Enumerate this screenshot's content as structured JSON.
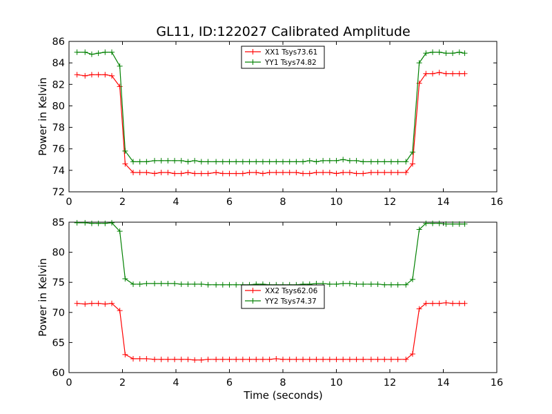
{
  "title": "GL11, ID:122027 Calibrated Amplitude",
  "xlabel": "Time (seconds)",
  "chart_data": [
    {
      "type": "line",
      "title": "GL11, ID:122027 Calibrated Amplitude",
      "xlabel": "",
      "ylabel": "Power in Kelvin",
      "xlim": [
        0,
        16
      ],
      "ylim": [
        72,
        86
      ],
      "xticks": [
        0,
        2,
        4,
        6,
        8,
        10,
        12,
        14,
        16
      ],
      "yticks": [
        72,
        74,
        76,
        78,
        80,
        82,
        84,
        86
      ],
      "grid": false,
      "legend_position": "top-center",
      "x": [
        0.3,
        0.6,
        0.85,
        1.1,
        1.35,
        1.6,
        1.9,
        2.1,
        2.4,
        2.65,
        2.9,
        3.2,
        3.45,
        3.7,
        3.95,
        4.2,
        4.45,
        4.7,
        4.95,
        5.2,
        5.5,
        5.75,
        6.0,
        6.25,
        6.5,
        6.75,
        7.0,
        7.25,
        7.5,
        7.75,
        8.0,
        8.25,
        8.5,
        8.75,
        9.0,
        9.25,
        9.5,
        9.75,
        10.0,
        10.25,
        10.5,
        10.75,
        11.0,
        11.3,
        11.55,
        11.8,
        12.05,
        12.3,
        12.6,
        12.85,
        13.1,
        13.35,
        13.6,
        13.85,
        14.1,
        14.35,
        14.6,
        14.8
      ],
      "series": [
        {
          "name": "XX1 Tsys73.61",
          "color": "#ff0000",
          "values": [
            82.9,
            82.8,
            82.9,
            82.9,
            82.9,
            82.8,
            81.8,
            74.6,
            73.8,
            73.8,
            73.8,
            73.7,
            73.8,
            73.8,
            73.7,
            73.7,
            73.8,
            73.7,
            73.7,
            73.7,
            73.8,
            73.7,
            73.7,
            73.7,
            73.7,
            73.8,
            73.8,
            73.7,
            73.8,
            73.8,
            73.8,
            73.8,
            73.8,
            73.7,
            73.7,
            73.8,
            73.8,
            73.8,
            73.7,
            73.8,
            73.8,
            73.7,
            73.7,
            73.8,
            73.8,
            73.8,
            73.8,
            73.8,
            73.8,
            74.6,
            82.1,
            83.0,
            83.0,
            83.1,
            83.0,
            83.0,
            83.0,
            83.0
          ]
        },
        {
          "name": "YY1 Tsys74.82",
          "color": "#008000",
          "values": [
            85.0,
            85.0,
            84.8,
            84.9,
            85.0,
            85.0,
            83.7,
            75.8,
            74.8,
            74.8,
            74.8,
            74.9,
            74.9,
            74.9,
            74.9,
            74.9,
            74.8,
            74.9,
            74.8,
            74.8,
            74.8,
            74.8,
            74.8,
            74.8,
            74.8,
            74.8,
            74.8,
            74.8,
            74.8,
            74.8,
            74.8,
            74.8,
            74.8,
            74.8,
            74.9,
            74.8,
            74.9,
            74.9,
            74.9,
            75.0,
            74.9,
            74.9,
            74.8,
            74.8,
            74.8,
            74.8,
            74.8,
            74.8,
            74.8,
            75.7,
            84.0,
            84.9,
            85.0,
            85.0,
            84.9,
            84.9,
            85.0,
            84.9
          ]
        }
      ]
    },
    {
      "type": "line",
      "title": "",
      "xlabel": "Time (seconds)",
      "ylabel": "Power in Kelvin",
      "xlim": [
        0,
        16
      ],
      "ylim": [
        60,
        85
      ],
      "xticks": [
        0,
        2,
        4,
        6,
        8,
        10,
        12,
        14,
        16
      ],
      "yticks": [
        60,
        65,
        70,
        75,
        80,
        85
      ],
      "grid": false,
      "legend_position": "center",
      "x": [
        0.3,
        0.6,
        0.85,
        1.1,
        1.35,
        1.6,
        1.9,
        2.1,
        2.4,
        2.65,
        2.9,
        3.2,
        3.45,
        3.7,
        3.95,
        4.2,
        4.45,
        4.7,
        4.95,
        5.2,
        5.5,
        5.75,
        6.0,
        6.25,
        6.5,
        6.75,
        7.0,
        7.25,
        7.5,
        7.75,
        8.0,
        8.25,
        8.5,
        8.75,
        9.0,
        9.25,
        9.5,
        9.75,
        10.0,
        10.25,
        10.5,
        10.75,
        11.0,
        11.3,
        11.55,
        11.8,
        12.05,
        12.3,
        12.6,
        12.85,
        13.1,
        13.35,
        13.6,
        13.85,
        14.1,
        14.35,
        14.6,
        14.8
      ],
      "series": [
        {
          "name": "XX2 Tsys62.06",
          "color": "#ff0000",
          "values": [
            71.5,
            71.4,
            71.5,
            71.5,
            71.4,
            71.5,
            70.3,
            63.0,
            62.3,
            62.3,
            62.3,
            62.2,
            62.2,
            62.2,
            62.2,
            62.2,
            62.2,
            62.1,
            62.1,
            62.2,
            62.2,
            62.2,
            62.2,
            62.2,
            62.2,
            62.2,
            62.2,
            62.2,
            62.2,
            62.3,
            62.2,
            62.2,
            62.2,
            62.2,
            62.2,
            62.2,
            62.2,
            62.2,
            62.2,
            62.2,
            62.2,
            62.2,
            62.2,
            62.2,
            62.2,
            62.2,
            62.2,
            62.2,
            62.2,
            63.1,
            70.6,
            71.5,
            71.5,
            71.5,
            71.6,
            71.5,
            71.5,
            71.5
          ]
        },
        {
          "name": "YY2 Tsys74.37",
          "color": "#008000",
          "values": [
            84.9,
            84.9,
            84.8,
            84.8,
            84.8,
            84.9,
            83.5,
            75.6,
            74.7,
            74.7,
            74.8,
            74.8,
            74.8,
            74.8,
            74.8,
            74.7,
            74.7,
            74.7,
            74.7,
            74.6,
            74.6,
            74.6,
            74.6,
            74.6,
            74.6,
            74.6,
            74.7,
            74.7,
            74.6,
            74.6,
            74.6,
            74.6,
            74.6,
            74.7,
            74.7,
            74.8,
            74.8,
            74.7,
            74.7,
            74.8,
            74.8,
            74.7,
            74.7,
            74.7,
            74.7,
            74.6,
            74.6,
            74.6,
            74.6,
            75.5,
            83.8,
            84.8,
            84.8,
            84.8,
            84.7,
            84.7,
            84.7,
            84.7
          ]
        }
      ]
    }
  ]
}
